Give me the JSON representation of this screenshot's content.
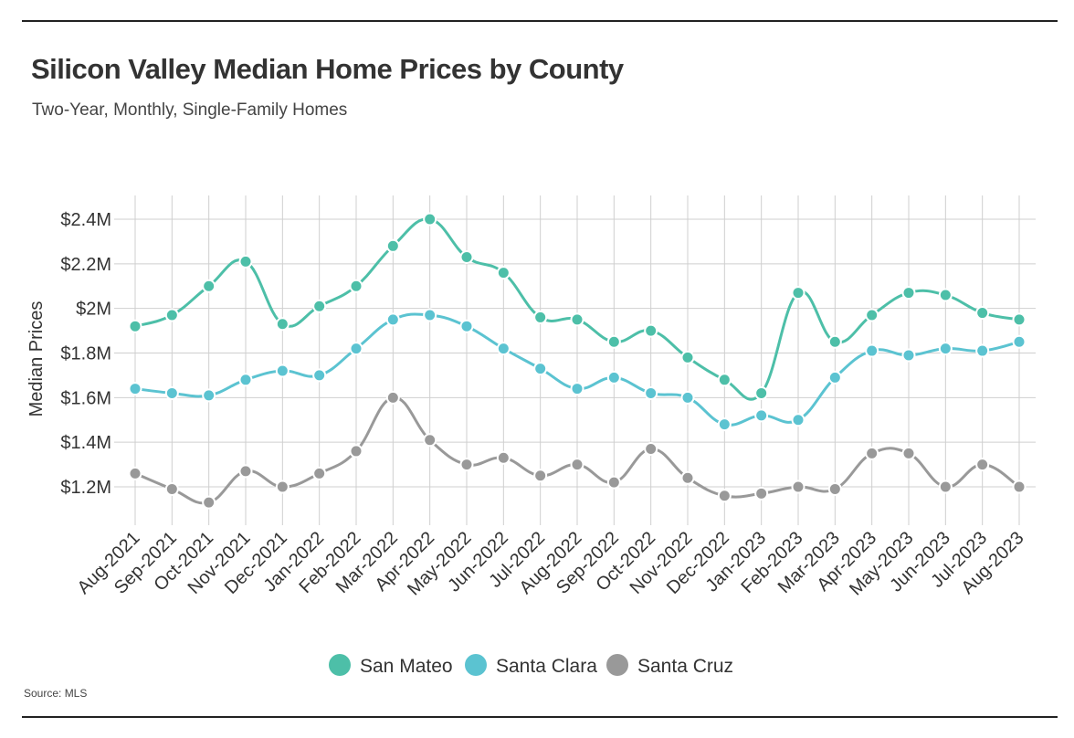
{
  "chart_data": {
    "type": "line",
    "title": "Silicon Valley Median Home Prices by County",
    "subtitle": "Two-Year, Monthly, Single-Family Homes",
    "ylabel": "Median Prices",
    "xlabel": "",
    "source": "Source:  MLS",
    "ylim": [
      1.1,
      2.5
    ],
    "yticks": [
      1.2,
      1.4,
      1.6,
      1.8,
      2.0,
      2.2,
      2.4
    ],
    "ytick_labels": [
      "$1.2M",
      "$1.4M",
      "$1.6M",
      "$1.8M",
      "$2M",
      "$2.2M",
      "$2.4M"
    ],
    "grid": true,
    "legend_position": "bottom-center",
    "categories": [
      "Aug-2021",
      "Sep-2021",
      "Oct-2021",
      "Nov-2021",
      "Dec-2021",
      "Jan-2022",
      "Feb-2022",
      "Mar-2022",
      "Apr-2022",
      "May-2022",
      "Jun-2022",
      "Jul-2022",
      "Aug-2022",
      "Sep-2022",
      "Oct-2022",
      "Nov-2022",
      "Dec-2022",
      "Jan-2023",
      "Feb-2023",
      "Mar-2023",
      "Apr-2023",
      "May-2023",
      "Jun-2023",
      "Jul-2023",
      "Aug-2023"
    ],
    "series": [
      {
        "name": "San Mateo",
        "color": "#4dbfa8",
        "values": [
          1.92,
          1.97,
          2.1,
          2.21,
          1.93,
          2.01,
          2.1,
          2.28,
          2.4,
          2.23,
          2.16,
          1.96,
          1.95,
          1.85,
          1.9,
          1.78,
          1.68,
          1.62,
          2.07,
          1.85,
          1.97,
          2.07,
          2.06,
          1.98,
          1.95
        ]
      },
      {
        "name": "Santa Clara",
        "color": "#5bc3d1",
        "values": [
          1.64,
          1.62,
          1.61,
          1.68,
          1.72,
          1.7,
          1.82,
          1.95,
          1.97,
          1.92,
          1.82,
          1.73,
          1.64,
          1.69,
          1.62,
          1.6,
          1.48,
          1.52,
          1.5,
          1.69,
          1.81,
          1.79,
          1.82,
          1.81,
          1.85
        ]
      },
      {
        "name": "Santa Cruz",
        "color": "#999999",
        "values": [
          1.26,
          1.19,
          1.13,
          1.27,
          1.2,
          1.26,
          1.36,
          1.6,
          1.41,
          1.3,
          1.33,
          1.25,
          1.3,
          1.22,
          1.37,
          1.24,
          1.16,
          1.17,
          1.2,
          1.19,
          1.35,
          1.35,
          1.2,
          1.3,
          1.2
        ]
      }
    ]
  }
}
